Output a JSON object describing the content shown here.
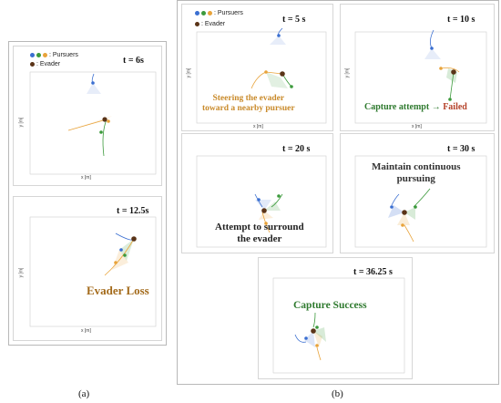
{
  "legend": {
    "pursuers_label": ": Pursuers",
    "evader_label": ": Evader",
    "pursuer_colors": [
      "#3b6fd1",
      "#3c9a3c",
      "#e8a33a"
    ],
    "evader_color": "#5a3418"
  },
  "panel_a": {
    "times": [
      "t = 6s",
      "t = 12.5s"
    ],
    "note": "Evader Loss",
    "note_color": "#a36a1a",
    "xlabel": "x [m]",
    "ylabel": "y [m]",
    "sublabel": "(a)"
  },
  "panel_b": {
    "times": [
      "t = 5 s",
      "t = 10 s",
      "t = 20 s",
      "t = 30 s",
      "t = 36.25 s"
    ],
    "notes": {
      "steering": "Steering the evader\ntoward a nearby pursuer",
      "steering_color": "#c98a2a",
      "capture_attempt": "Capture attempt",
      "failed": "Failed",
      "capture_color": "#2f7a2f",
      "failed_color": "#b5432a",
      "surround": "Attempt to surround\nthe evader",
      "maintain": "Maintain continuous\npursuing",
      "success": "Capture Success",
      "success_color": "#2f7a2f"
    },
    "xlabel": "x [m]",
    "ylabel": "y [m]",
    "sublabel": "(b)"
  }
}
